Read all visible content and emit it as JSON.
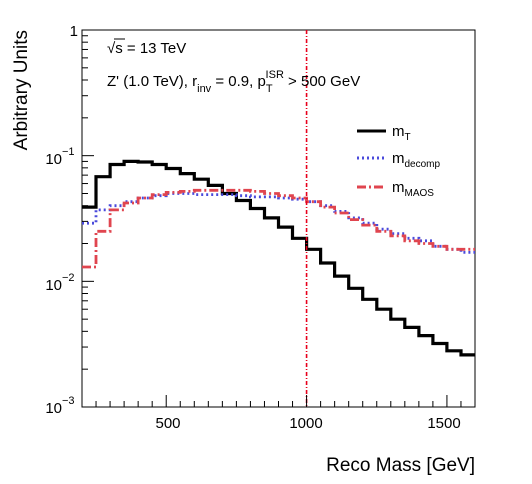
{
  "chart_data": {
    "type": "line",
    "drawstyle": "step",
    "xlabel": "Reco Mass [GeV]",
    "ylabel": "Arbitrary Units",
    "xlim": [
      200,
      1600
    ],
    "ylim": [
      0.001,
      1
    ],
    "yscale": "log",
    "x_ticks": [
      500,
      1000,
      1500
    ],
    "x_tick_labels": [
      "500",
      "1000",
      "1500"
    ],
    "y_ticks": [
      1,
      0.1,
      0.01,
      0.001
    ],
    "y_tick_labels": [
      {
        "base": "1",
        "exp": ""
      },
      {
        "base": "10",
        "exp": "−1"
      },
      {
        "base": "10",
        "exp": "−2"
      },
      {
        "base": "10",
        "exp": "−3"
      }
    ],
    "annotations": {
      "line1_sqrt": "√s",
      "line1_rest": " = 13 TeV",
      "line2_a": "Z' (1.0 TeV), r",
      "line2_sub_inv": "inv",
      "line2_b": " = 0.9, p",
      "line2_sub_T": "T",
      "line2_sup_ISR": "ISR",
      "line2_c": " > 500 GeV"
    },
    "vertical_line": {
      "x": 1000,
      "color": "#e8001c"
    },
    "bin_edges": [
      200,
      250,
      300,
      350,
      400,
      450,
      500,
      550,
      600,
      650,
      700,
      750,
      800,
      850,
      900,
      950,
      1000,
      1050,
      1100,
      1150,
      1200,
      1250,
      1300,
      1350,
      1400,
      1450,
      1500,
      1550,
      1600
    ],
    "series": [
      {
        "name": "m",
        "name_sub": "T",
        "color": "#000000",
        "dash": "solid",
        "values": [
          0.039,
          0.068,
          0.085,
          0.09,
          0.089,
          0.085,
          0.079,
          0.072,
          0.065,
          0.058,
          0.05,
          0.044,
          0.038,
          0.032,
          0.027,
          0.022,
          0.018,
          0.014,
          0.011,
          0.0088,
          0.0072,
          0.006,
          0.005,
          0.0043,
          0.0037,
          0.0032,
          0.0028,
          0.0026
        ]
      },
      {
        "name": "m",
        "name_sub": "decomp",
        "color": "#4a4adb",
        "dash": "dotted",
        "values": [
          0.029,
          0.037,
          0.04,
          0.043,
          0.046,
          0.048,
          0.05,
          0.05,
          0.049,
          0.049,
          0.049,
          0.048,
          0.047,
          0.047,
          0.046,
          0.045,
          0.043,
          0.04,
          0.036,
          0.032,
          0.029,
          0.026,
          0.024,
          0.022,
          0.021,
          0.019,
          0.018,
          0.017
        ]
      },
      {
        "name": "m",
        "name_sub": "MAOS",
        "color": "#e0454f",
        "dash": "dashed",
        "values": [
          0.013,
          0.025,
          0.037,
          0.042,
          0.046,
          0.049,
          0.051,
          0.052,
          0.053,
          0.053,
          0.053,
          0.053,
          0.052,
          0.05,
          0.048,
          0.046,
          0.043,
          0.039,
          0.035,
          0.031,
          0.028,
          0.025,
          0.023,
          0.021,
          0.02,
          0.019,
          0.018,
          0.018
        ]
      }
    ],
    "legend_position": "right"
  }
}
